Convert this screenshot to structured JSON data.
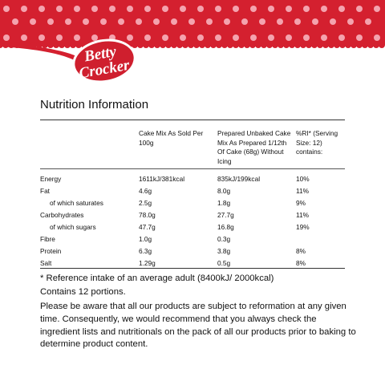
{
  "brand": {
    "name_line1": "Betty",
    "name_line2": "Crocker",
    "banner_color": "#d4202f",
    "dot_color": "#f4a3ae"
  },
  "title": "Nutrition Information",
  "table": {
    "headers": {
      "nutrient": "",
      "sold": "Cake Mix As Sold Per 100g",
      "prepared": "Prepared Unbaked Cake Mix As Prepared 1/12th Of Cake (68g) Without Icing",
      "ri": "%RI* (Serving Size: 12) contains:"
    },
    "rows": [
      {
        "name": "Energy",
        "sold": "1611kJ/381kcal",
        "prepared": "835kJ/199kcal",
        "ri": "10%"
      },
      {
        "name": "Fat",
        "sold": "4.6g",
        "prepared": "8.0g",
        "ri": "11%"
      },
      {
        "name": "of which saturates",
        "sold": "2.5g",
        "prepared": "1.8g",
        "ri": "9%"
      },
      {
        "name": "Carbohydrates",
        "sold": "78.0g",
        "prepared": "27.7g",
        "ri": "11%"
      },
      {
        "name": "of which sugars",
        "sold": "47.7g",
        "prepared": "16.8g",
        "ri": "19%"
      },
      {
        "name": "Fibre",
        "sold": "1.0g",
        "prepared": "0.3g",
        "ri": ""
      },
      {
        "name": "Protein",
        "sold": "6.3g",
        "prepared": "3.8g",
        "ri": "8%"
      },
      {
        "name": "Salt",
        "sold": "1.29g",
        "prepared": "0.5g",
        "ri": "8%"
      }
    ]
  },
  "footnotes": {
    "reference": "* Reference intake of an average adult (8400kJ/ 2000kcal)",
    "portions": "Contains 12 portions.",
    "disclaimer": "Please be aware that all our products are subject to reformation at any given time. Consequently, we would recommend that you always check the ingredient lists and nutritionals on the pack of all our products prior to baking to determine product content."
  }
}
